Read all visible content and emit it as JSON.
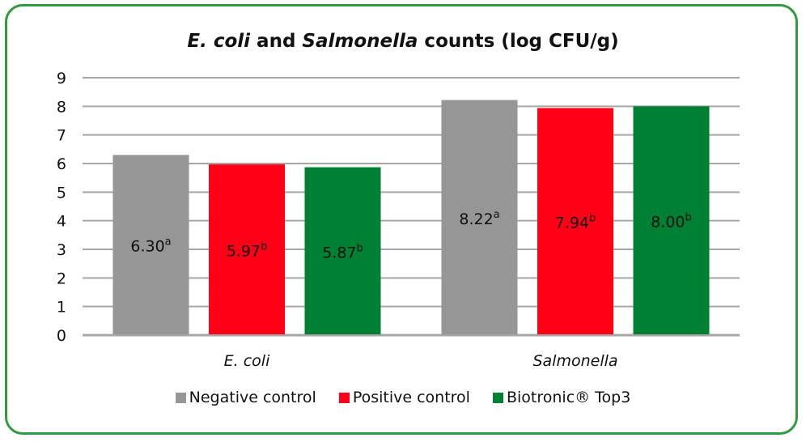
{
  "chart_data": {
    "type": "bar",
    "title": {
      "italic1": "E. coli",
      "mid": " and ",
      "italic2": "Salmonella",
      "rest": " counts (log CFU/g)"
    },
    "categories": [
      "E. coli",
      "Salmonella"
    ],
    "series": [
      {
        "name": "Negative control",
        "color": "#969696",
        "values": [
          6.3,
          8.22
        ],
        "superscripts": [
          "a",
          "a"
        ]
      },
      {
        "name": "Positive control",
        "color": "#ff0016",
        "values": [
          5.97,
          7.94
        ],
        "superscripts": [
          "b",
          "b"
        ]
      },
      {
        "name": "Biotronic® Top3",
        "color": "#008033",
        "values": [
          5.87,
          8.0
        ],
        "superscripts": [
          "b",
          "b"
        ]
      }
    ],
    "ylim": [
      0,
      9
    ],
    "yticks": [
      0,
      1,
      2,
      3,
      4,
      5,
      6,
      7,
      8,
      9
    ],
    "grid": true,
    "legend_position": "bottom",
    "xlabel": "",
    "ylabel": ""
  }
}
